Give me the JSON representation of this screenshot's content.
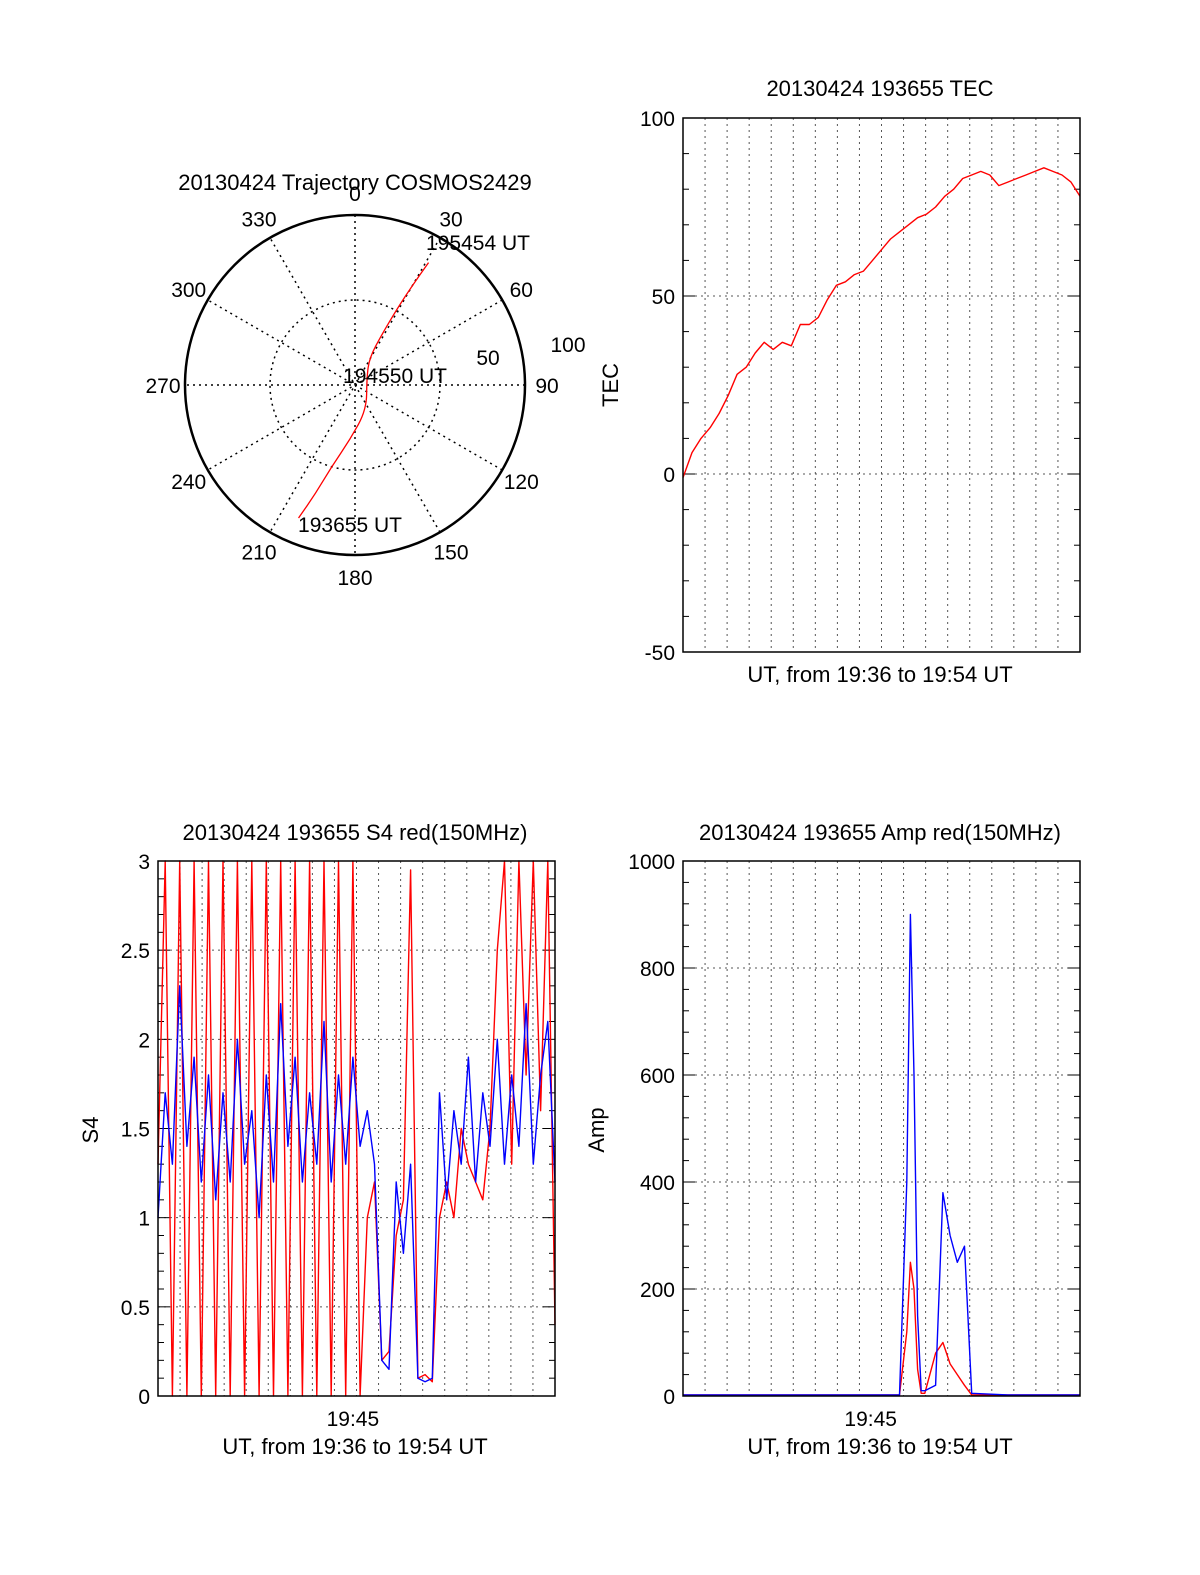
{
  "colors": {
    "red": "#ff0000",
    "blue": "#0000ff",
    "axis": "#000000",
    "grid": "#555555"
  },
  "charts": [
    {
      "id": "polar",
      "type": "polar",
      "title": "20130424 Trajectory COSMOS2429",
      "azimuth_labels": [
        "0",
        "30",
        "60",
        "90",
        "120",
        "150",
        "180",
        "210",
        "240",
        "270",
        "300",
        "330"
      ],
      "radial_labels": [
        "50",
        "100"
      ],
      "rmax": 100,
      "annotations": [
        {
          "text": "195454 UT",
          "azimuth": 30,
          "r": 84
        },
        {
          "text": "194550 UT",
          "azimuth": 20,
          "r": 12
        },
        {
          "text": "193655 UT",
          "azimuth": 203,
          "r": 85
        }
      ],
      "trajectory": [
        {
          "azimuth": 203,
          "r": 85
        },
        {
          "azimuth": 200,
          "r": 68
        },
        {
          "azimuth": 196,
          "r": 50
        },
        {
          "azimuth": 185,
          "r": 32
        },
        {
          "azimuth": 155,
          "r": 16
        },
        {
          "azimuth": 60,
          "r": 8
        },
        {
          "azimuth": 28,
          "r": 18
        },
        {
          "azimuth": 28,
          "r": 34
        },
        {
          "azimuth": 29,
          "r": 52
        },
        {
          "azimuth": 30,
          "r": 68
        },
        {
          "azimuth": 31,
          "r": 84
        }
      ]
    },
    {
      "id": "tec",
      "type": "line",
      "title": "20130424 193655 TEC",
      "xlabel": "UT, from 19:36 to 19:54 UT",
      "ylabel": "TEC",
      "ylim": [
        -50,
        100
      ],
      "yticks": [
        "-50",
        "0",
        "50",
        "100"
      ],
      "xticks": [],
      "x_range_min": [
        0,
        1100
      ],
      "grid": true,
      "series": [
        {
          "color": "red",
          "x": [
            0,
            25,
            50,
            75,
            100,
            125,
            150,
            175,
            200,
            225,
            250,
            275,
            300,
            325,
            350,
            375,
            400,
            425,
            450,
            475,
            500,
            525,
            550,
            575,
            600,
            625,
            650,
            675,
            700,
            725,
            750,
            775,
            800,
            825,
            850,
            875,
            900,
            925,
            950,
            975,
            1000,
            1025,
            1050,
            1075,
            1100
          ],
          "y": [
            -1,
            6,
            10,
            13,
            17,
            22,
            28,
            30,
            34,
            37,
            35,
            37,
            36,
            42,
            42,
            44,
            49,
            53,
            54,
            56,
            57,
            60,
            63,
            66,
            68,
            70,
            72,
            73,
            75,
            78,
            80,
            83,
            84,
            85,
            84,
            81,
            82,
            83,
            84,
            85,
            86,
            85,
            84,
            82,
            78
          ]
        }
      ]
    },
    {
      "id": "s4",
      "type": "line",
      "title": "20130424 193655 S4 red(150MHz)",
      "xlabel": "UT, from 19:36 to 19:54 UT",
      "ylabel": "S4",
      "ylim": [
        0,
        3
      ],
      "yticks": [
        "0",
        "0.5",
        "1",
        "1.5",
        "2",
        "2.5",
        "3"
      ],
      "xticks": [
        {
          "label": "19:45",
          "x": 540
        }
      ],
      "x_range_min": [
        0,
        1100
      ],
      "grid": true,
      "series": [
        {
          "color": "red",
          "x": [
            0,
            20,
            40,
            60,
            80,
            100,
            120,
            140,
            160,
            180,
            200,
            220,
            240,
            260,
            280,
            300,
            320,
            340,
            360,
            380,
            400,
            420,
            440,
            460,
            480,
            500,
            520,
            540,
            560,
            580,
            600,
            620,
            640,
            660,
            680,
            700,
            720,
            740,
            760,
            780,
            800,
            820,
            840,
            860,
            880,
            900,
            920,
            940,
            960,
            980,
            1000,
            1020,
            1040,
            1060,
            1080,
            1100
          ],
          "y": [
            1.3,
            3.0,
            0.0,
            3.0,
            0.0,
            3.0,
            0.0,
            3.0,
            0.0,
            3.0,
            0.0,
            3.0,
            0.0,
            3.0,
            0.0,
            3.0,
            0.0,
            3.0,
            0.0,
            3.0,
            0.0,
            3.0,
            0.0,
            3.0,
            0.0,
            3.0,
            0.0,
            3.0,
            0.0,
            1.0,
            1.2,
            0.2,
            0.25,
            0.9,
            1.1,
            2.95,
            0.1,
            0.12,
            0.08,
            1.0,
            1.2,
            1.0,
            1.5,
            1.3,
            1.2,
            1.1,
            1.5,
            2.5,
            3.0,
            1.3,
            3.0,
            1.8,
            3.0,
            1.6,
            3.0,
            0.4
          ]
        },
        {
          "color": "blue",
          "x": [
            0,
            20,
            40,
            60,
            80,
            100,
            120,
            140,
            160,
            180,
            200,
            220,
            240,
            260,
            280,
            300,
            320,
            340,
            360,
            380,
            400,
            420,
            440,
            460,
            480,
            500,
            520,
            540,
            560,
            580,
            600,
            620,
            640,
            660,
            680,
            700,
            720,
            740,
            760,
            780,
            800,
            820,
            840,
            860,
            880,
            900,
            920,
            940,
            960,
            980,
            1000,
            1020,
            1040,
            1060,
            1080,
            1100
          ],
          "y": [
            1.0,
            1.7,
            1.3,
            2.3,
            1.4,
            1.9,
            1.2,
            1.8,
            1.1,
            1.7,
            1.2,
            2.0,
            1.3,
            1.6,
            1.0,
            1.8,
            1.2,
            2.2,
            1.4,
            1.9,
            1.2,
            1.7,
            1.3,
            2.1,
            1.2,
            1.8,
            1.3,
            1.9,
            1.4,
            1.6,
            1.3,
            0.2,
            0.15,
            1.2,
            0.8,
            1.3,
            0.1,
            0.08,
            0.1,
            1.7,
            1.1,
            1.6,
            1.3,
            1.9,
            1.2,
            1.7,
            1.4,
            2.0,
            1.3,
            1.8,
            1.4,
            2.2,
            1.3,
            1.8,
            2.1,
            1.2
          ]
        }
      ]
    },
    {
      "id": "amp",
      "type": "line",
      "title": "20130424 193655 Amp red(150MHz)",
      "xlabel": "UT, from 19:36 to 19:54 UT",
      "ylabel": "Amp",
      "ylim": [
        0,
        1000
      ],
      "yticks": [
        "0",
        "200",
        "400",
        "600",
        "800",
        "1000"
      ],
      "xticks": [
        {
          "label": "19:45",
          "x": 520
        }
      ],
      "x_range_min": [
        0,
        1100
      ],
      "grid": true,
      "series": [
        {
          "color": "red",
          "x": [
            0,
            100,
            200,
            300,
            400,
            500,
            600,
            620,
            630,
            640,
            650,
            660,
            670,
            700,
            720,
            740,
            760,
            780,
            800,
            900,
            1000,
            1100
          ],
          "y": [
            2,
            2,
            2,
            2,
            2,
            2,
            2,
            120,
            250,
            200,
            50,
            5,
            5,
            80,
            100,
            60,
            40,
            20,
            2,
            2,
            2,
            2
          ]
        },
        {
          "color": "blue",
          "x": [
            0,
            100,
            200,
            300,
            400,
            500,
            600,
            620,
            630,
            640,
            650,
            660,
            670,
            700,
            720,
            740,
            760,
            780,
            800,
            900,
            1000,
            1100
          ],
          "y": [
            2,
            2,
            2,
            2,
            2,
            2,
            2,
            400,
            900,
            600,
            150,
            10,
            10,
            20,
            380,
            300,
            250,
            280,
            5,
            2,
            2,
            2
          ]
        }
      ]
    }
  ]
}
